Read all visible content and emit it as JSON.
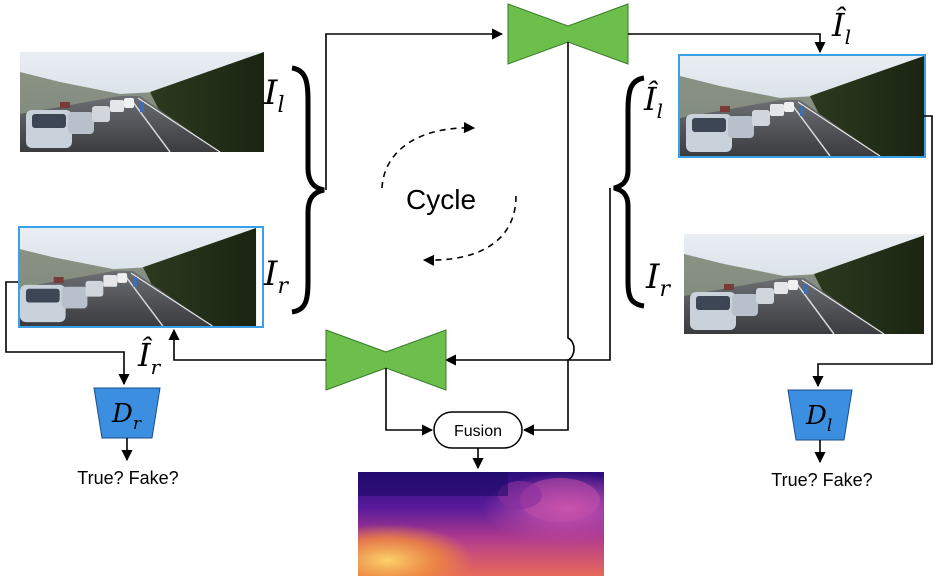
{
  "cycle_label": "Cycle",
  "fusion_label": "Fusion",
  "labels": {
    "I_l": "I",
    "I_l_sub": "l",
    "I_r": "I",
    "I_r_sub": "r",
    "Ihat_l_top": "Î",
    "Ihat_l_top_sub": "l",
    "Ihat_l_mid": "Î",
    "Ihat_l_mid_sub": "l",
    "I_r_right": "I",
    "I_r_right_sub": "r",
    "Ihat_r": "Î",
    "Ihat_r_sub": "r"
  },
  "discriminators": {
    "left": {
      "main": "D",
      "sub": "r",
      "verdict": "True? Fake?"
    },
    "right": {
      "main": "D",
      "sub": "l",
      "verdict": "True? Fake?"
    }
  },
  "colors": {
    "generator_fill": "#6cbf4b",
    "discriminator_fill": "#3c8fe0",
    "highlight_border": "#3aa0e8",
    "depth_dark": "#2a0d7a",
    "depth_bright": "#f7b24a"
  }
}
